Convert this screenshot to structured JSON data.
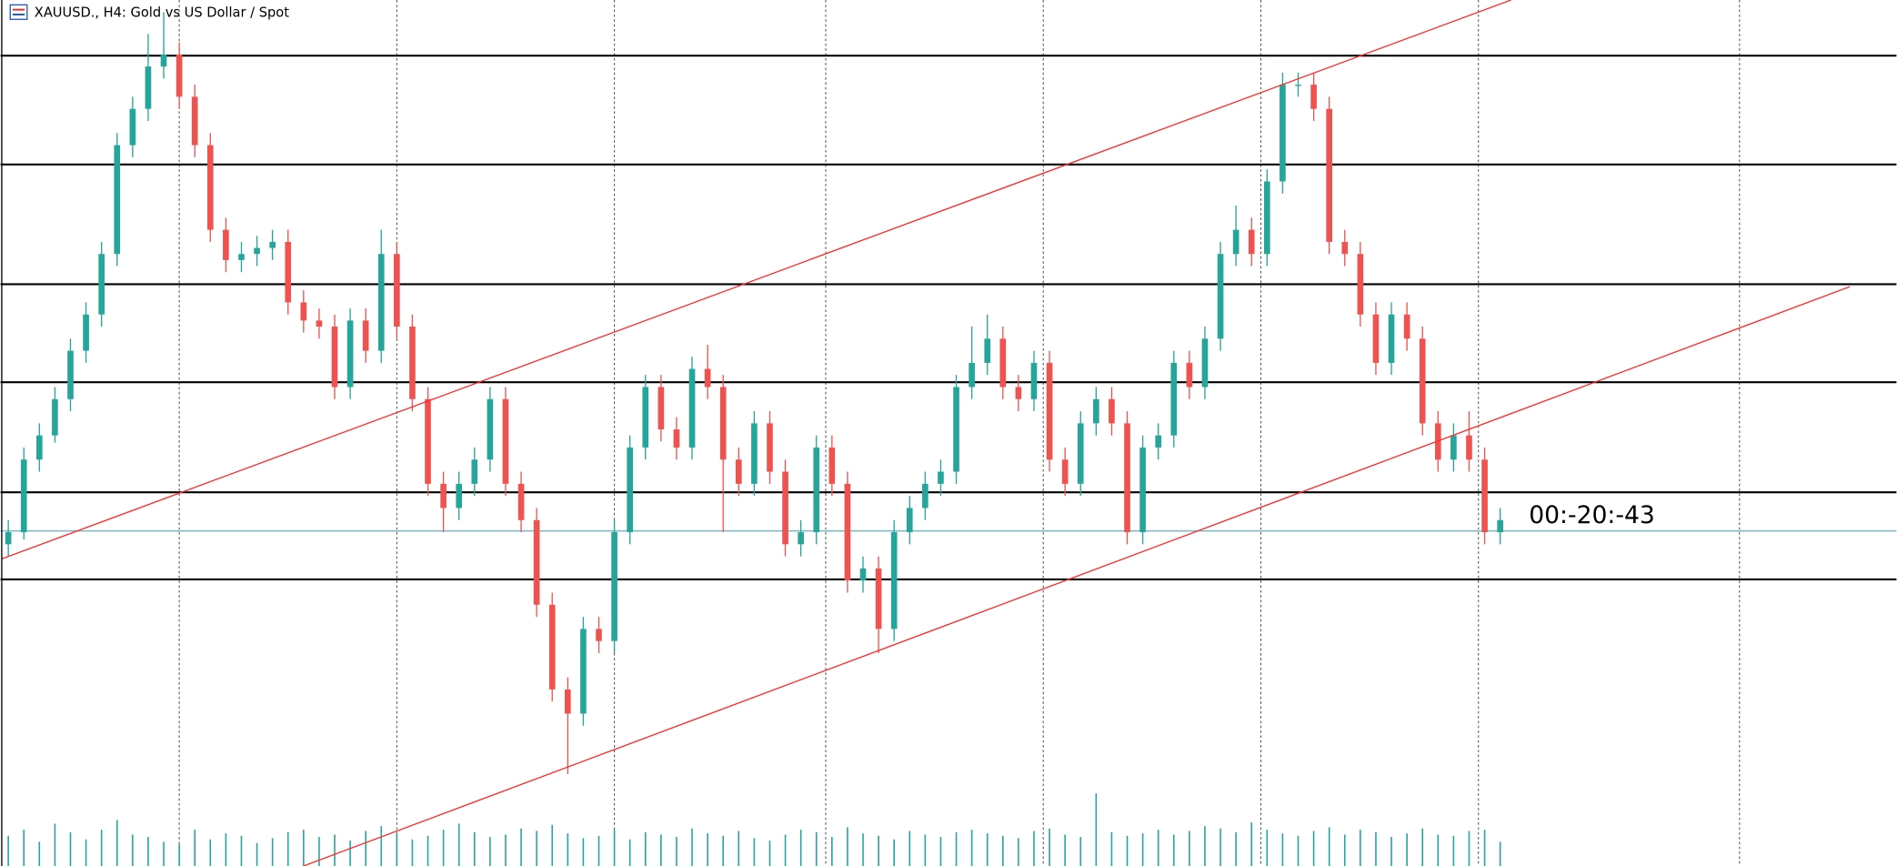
{
  "chart_data": {
    "type": "candlestick",
    "title": "XAUUSD., H4:  Gold vs US Dollar / Spot",
    "countdown": "00:-20:-43",
    "up_color": "#26a69a",
    "down_color": "#ef5350",
    "level_color": "#000000",
    "trend_color": "#ff2b2b",
    "price_line_color": "#6fb6c6",
    "xlim": [
      -0.5,
      121.5
    ],
    "ylim": [
      0,
      716
    ],
    "grid": true,
    "xgrid": [
      11,
      25,
      39,
      52.6,
      66.6,
      80.6,
      94.6,
      111.4
    ],
    "levels": [
      670,
      580,
      481,
      400,
      309,
      237
    ],
    "current_price": 277,
    "trendlines": [
      {
        "x": [
          -0.4,
          96.7
        ],
        "y": [
          254,
          716
        ]
      },
      {
        "x": [
          19,
          118.5
        ],
        "y": [
          0,
          479
        ]
      }
    ],
    "ohlc": [
      [
        266,
        286,
        256,
        276
      ],
      [
        276,
        346,
        270,
        336
      ],
      [
        336,
        366,
        326,
        356
      ],
      [
        356,
        396,
        350,
        386
      ],
      [
        386,
        436,
        376,
        426
      ],
      [
        426,
        466,
        416,
        456
      ],
      [
        456,
        516,
        446,
        506
      ],
      [
        506,
        606,
        496,
        596
      ],
      [
        596,
        636,
        586,
        626
      ],
      [
        626,
        688,
        616,
        661
      ],
      [
        661,
        706,
        651,
        671
      ],
      [
        671,
        681,
        626,
        636
      ],
      [
        636,
        646,
        586,
        596
      ],
      [
        596,
        606,
        516,
        526
      ],
      [
        526,
        536,
        491,
        501
      ],
      [
        501,
        516,
        491,
        506
      ],
      [
        506,
        521,
        496,
        511
      ],
      [
        511,
        526,
        501,
        516
      ],
      [
        516,
        526,
        456,
        466
      ],
      [
        466,
        476,
        441,
        451
      ],
      [
        451,
        461,
        436,
        446
      ],
      [
        446,
        456,
        386,
        396
      ],
      [
        396,
        461,
        386,
        451
      ],
      [
        451,
        461,
        416,
        426
      ],
      [
        426,
        526,
        416,
        506
      ],
      [
        506,
        516,
        436,
        446
      ],
      [
        446,
        456,
        376,
        386
      ],
      [
        386,
        396,
        306,
        316
      ],
      [
        316,
        326,
        276,
        296
      ],
      [
        296,
        326,
        286,
        316
      ],
      [
        316,
        346,
        306,
        336
      ],
      [
        336,
        396,
        326,
        386
      ],
      [
        386,
        396,
        306,
        316
      ],
      [
        316,
        326,
        276,
        286
      ],
      [
        286,
        296,
        206,
        216
      ],
      [
        216,
        226,
        136,
        146
      ],
      [
        146,
        156,
        76,
        126
      ],
      [
        126,
        206,
        116,
        196
      ],
      [
        196,
        206,
        176,
        186
      ],
      [
        186,
        286,
        176,
        276
      ],
      [
        276,
        356,
        266,
        346
      ],
      [
        346,
        406,
        336,
        396
      ],
      [
        396,
        406,
        351,
        361
      ],
      [
        361,
        371,
        336,
        346
      ],
      [
        346,
        421,
        336,
        411
      ],
      [
        411,
        431,
        386,
        396
      ],
      [
        396,
        406,
        276,
        336
      ],
      [
        336,
        346,
        306,
        316
      ],
      [
        316,
        376,
        306,
        366
      ],
      [
        366,
        376,
        316,
        326
      ],
      [
        326,
        336,
        256,
        266
      ],
      [
        266,
        286,
        256,
        276
      ],
      [
        276,
        356,
        266,
        346
      ],
      [
        346,
        356,
        306,
        316
      ],
      [
        316,
        326,
        226,
        236
      ],
      [
        236,
        256,
        226,
        246
      ],
      [
        246,
        256,
        176,
        196
      ],
      [
        196,
        286,
        186,
        276
      ],
      [
        276,
        306,
        266,
        296
      ],
      [
        296,
        326,
        286,
        316
      ],
      [
        316,
        336,
        306,
        326
      ],
      [
        326,
        406,
        316,
        396
      ],
      [
        396,
        446,
        386,
        416
      ],
      [
        416,
        456,
        406,
        436
      ],
      [
        436,
        446,
        386,
        396
      ],
      [
        396,
        406,
        376,
        386
      ],
      [
        386,
        426,
        376,
        416
      ],
      [
        416,
        426,
        326,
        336
      ],
      [
        336,
        346,
        306,
        316
      ],
      [
        316,
        376,
        306,
        366
      ],
      [
        366,
        396,
        356,
        386
      ],
      [
        386,
        396,
        356,
        366
      ],
      [
        366,
        376,
        266,
        276
      ],
      [
        276,
        356,
        266,
        346
      ],
      [
        346,
        366,
        336,
        356
      ],
      [
        356,
        426,
        346,
        416
      ],
      [
        416,
        426,
        386,
        396
      ],
      [
        396,
        446,
        386,
        436
      ],
      [
        436,
        516,
        426,
        506
      ],
      [
        506,
        546,
        496,
        526
      ],
      [
        526,
        536,
        496,
        506
      ],
      [
        506,
        576,
        496,
        566
      ],
      [
        566,
        656,
        556,
        646
      ],
      [
        646,
        656,
        636,
        646
      ],
      [
        646,
        656,
        616,
        626
      ],
      [
        626,
        636,
        506,
        516
      ],
      [
        516,
        526,
        496,
        506
      ],
      [
        506,
        516,
        446,
        456
      ],
      [
        456,
        466,
        406,
        416
      ],
      [
        416,
        466,
        406,
        456
      ],
      [
        456,
        466,
        426,
        436
      ],
      [
        436,
        446,
        356,
        366
      ],
      [
        366,
        376,
        326,
        336
      ],
      [
        336,
        366,
        326,
        356
      ],
      [
        356,
        376,
        326,
        336
      ],
      [
        336,
        346,
        266,
        276
      ],
      [
        276,
        296,
        266,
        286
      ]
    ],
    "volume": [
      25,
      30,
      20,
      35,
      28,
      22,
      30,
      38,
      26,
      24,
      20,
      18,
      30,
      22,
      27,
      25,
      19,
      23,
      28,
      30,
      24,
      26,
      21,
      29,
      33,
      27,
      22,
      25,
      30,
      35,
      28,
      24,
      26,
      31,
      29,
      34,
      27,
      23,
      25,
      30,
      22,
      28,
      26,
      24,
      31,
      27,
      25,
      29,
      23,
      21,
      26,
      30,
      28,
      24,
      32,
      27,
      25,
      22,
      29,
      26,
      24,
      28,
      30,
      27,
      25,
      23,
      29,
      31,
      26,
      24,
      60,
      28,
      25,
      27,
      30,
      26,
      29,
      33,
      31,
      28,
      36,
      30,
      27,
      25,
      29,
      32,
      26,
      30,
      28,
      24,
      27,
      31,
      26,
      25,
      29,
      30,
      20
    ]
  }
}
